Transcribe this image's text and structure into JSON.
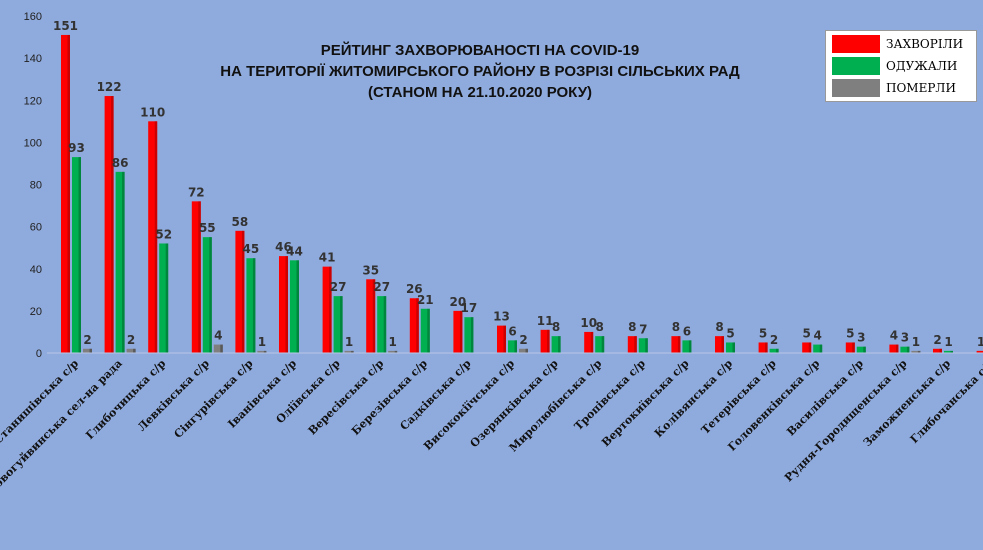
{
  "title_lines": [
    "РЕЙТИНГ ЗАХВОРЮВАНОСТІ НА COVID-19",
    "НА ТЕРИТОРІЇ ЖИТОМИРСЬКОГО РАЙОНУ В РОЗРІЗІ СІЛЬСЬКИХ РАД",
    "(СТАНОМ НА 21.10.2020 РОКУ)"
  ],
  "legend": [
    {
      "label": "ЗАХВОРІЛИ",
      "color": "#ff0000"
    },
    {
      "label": "ОДУЖАЛИ",
      "color": "#00b050"
    },
    {
      "label": "ПОМЕРЛИ",
      "color": "#7f7f7f"
    }
  ],
  "chart_data": {
    "type": "bar",
    "ylim": [
      0,
      160
    ],
    "yticks": [
      0,
      20,
      40,
      60,
      80,
      100,
      120,
      140,
      160
    ],
    "grid": false,
    "legend_position": "top-right",
    "categories": [
      "Станишівська с/р",
      "Новогуйвинська сел-на рада",
      "Глибочицька с/р",
      "Левківська с/р",
      "Сінгурівська с/р",
      "Іванівська с/р",
      "Оліївська с/р",
      "Вересівська с/р",
      "Березівська с/р",
      "Садківська с/р",
      "Висококіїчська с/р",
      "Озерянківська с/р",
      "Миролюбівська с/р",
      "Тропівська с/р",
      "Вертокиївська с/р",
      "Колівянська с/р",
      "Тетерівська с/р",
      "Головенківська с/р",
      "Василівська с/р",
      "Рудня-Городищенська с/р",
      "Заможненська с/р",
      "Глибочанська с/р"
    ],
    "series": [
      {
        "name": "ЗАХВОРІЛИ",
        "color": "#ff0000",
        "values": [
          151,
          122,
          110,
          72,
          58,
          46,
          41,
          35,
          26,
          20,
          13,
          11,
          10,
          8,
          8,
          8,
          5,
          5,
          5,
          4,
          2,
          1
        ]
      },
      {
        "name": "ОДУЖАЛИ",
        "color": "#00b050",
        "values": [
          93,
          86,
          52,
          55,
          45,
          44,
          27,
          27,
          21,
          17,
          6,
          8,
          8,
          7,
          6,
          5,
          2,
          4,
          3,
          3,
          1,
          1
        ]
      },
      {
        "name": "ПОМЕРЛИ",
        "color": "#7f7f7f",
        "values": [
          2,
          2,
          0,
          4,
          1,
          0,
          1,
          1,
          0,
          0,
          2,
          0,
          0,
          0,
          0,
          0,
          0,
          0,
          0,
          1,
          0,
          0
        ]
      }
    ]
  }
}
